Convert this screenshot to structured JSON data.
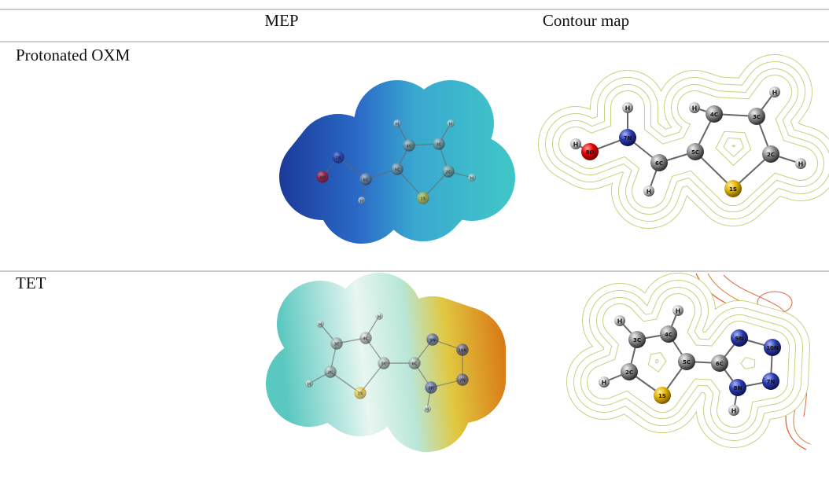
{
  "table": {
    "header": [
      "MEP",
      "Contour map"
    ],
    "rows": [
      {
        "label": "Protonated OXM",
        "mep_atoms": [
          "H",
          "4C",
          "H",
          "3C",
          "5C",
          "2C",
          "H",
          "1S",
          "6C",
          "H",
          "7N",
          "8O"
        ],
        "contour_atoms": [
          "H",
          "8O",
          "H",
          "7N",
          "6C",
          "H",
          "5C",
          "4C",
          "H",
          "3C",
          "H",
          "2C",
          "H",
          "1S"
        ]
      },
      {
        "label": "TET",
        "mep_atoms": [
          "H",
          "H",
          "3C",
          "4C",
          "2C",
          "H",
          "1S",
          "5C",
          "6C",
          "9N",
          "10N",
          "7N",
          "8N",
          "H"
        ],
        "contour_atoms": [
          "3C",
          "H",
          "4C",
          "H",
          "2C",
          "H",
          "1S",
          "5C",
          "6C",
          "9N",
          "10N",
          "7N",
          "8N",
          "H"
        ]
      }
    ]
  }
}
